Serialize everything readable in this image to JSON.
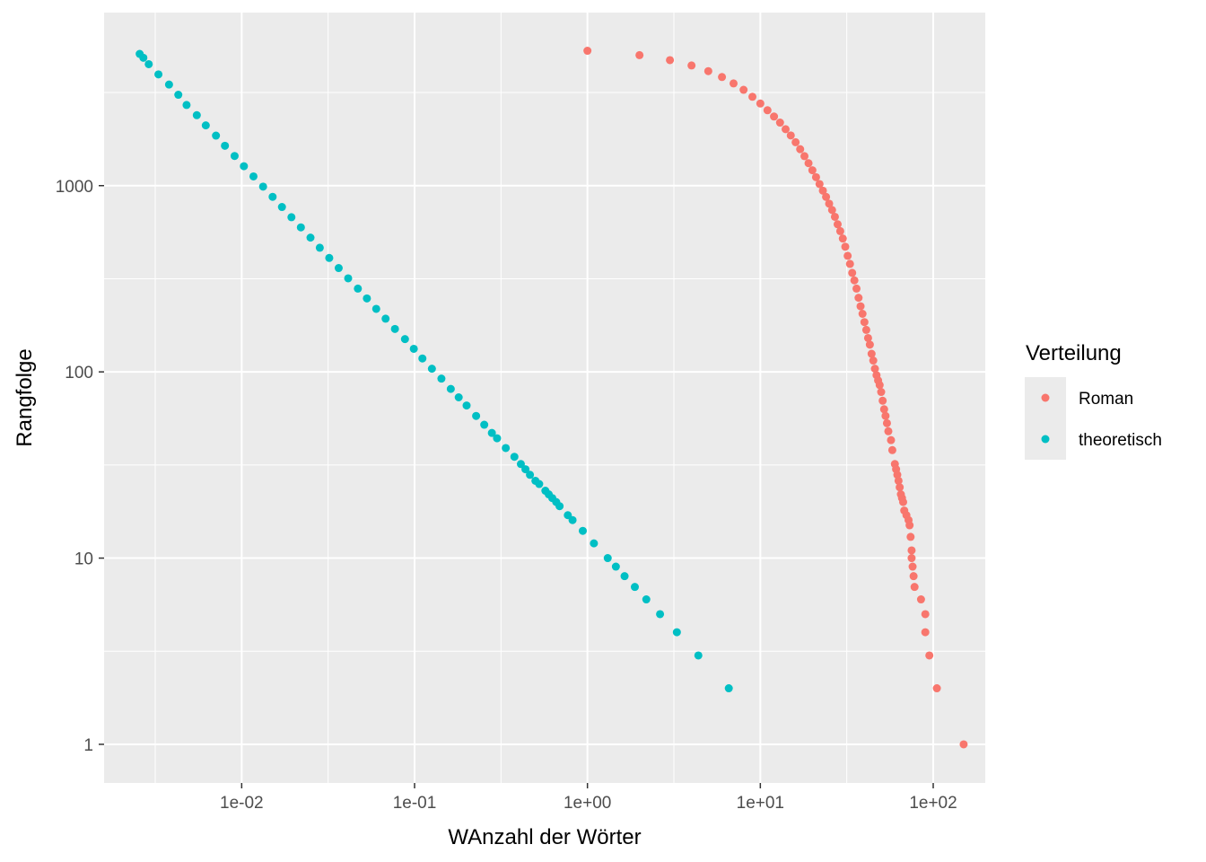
{
  "chart_data": {
    "type": "scatter",
    "xlabel": "WAnzahl der Wörter",
    "ylabel": "Rangfolge",
    "x_scale": "log10",
    "y_scale": "log10",
    "xlim": [
      0.0016,
      200
    ],
    "ylim": [
      0.62,
      8500
    ],
    "grid": true,
    "x_ticks": [
      0.01,
      0.1,
      1,
      10,
      100
    ],
    "x_tick_labels": [
      "1e-02",
      "1e-01",
      "1e+00",
      "1e+01",
      "1e+02"
    ],
    "y_ticks": [
      1,
      10,
      100,
      1000
    ],
    "y_tick_labels": [
      "1",
      "10",
      "100",
      "1000"
    ],
    "legend": {
      "title": "Verteilung",
      "placement": "right"
    },
    "series": [
      {
        "name": "Roman",
        "color": "#F8766D",
        "points": [
          [
            150,
            1
          ],
          [
            105,
            2
          ],
          [
            95,
            3
          ],
          [
            90,
            4
          ],
          [
            90,
            5
          ],
          [
            85,
            6
          ],
          [
            78,
            7
          ],
          [
            77,
            8
          ],
          [
            76,
            9
          ],
          [
            75,
            10
          ],
          [
            75,
            11
          ],
          [
            74,
            13
          ],
          [
            73,
            15
          ],
          [
            72,
            16
          ],
          [
            70,
            17
          ],
          [
            68,
            18
          ],
          [
            67,
            20
          ],
          [
            66,
            21
          ],
          [
            65,
            22
          ],
          [
            64,
            24
          ],
          [
            63,
            26
          ],
          [
            62,
            28
          ],
          [
            61,
            30
          ],
          [
            60,
            32
          ],
          [
            58,
            38
          ],
          [
            57,
            43
          ],
          [
            55,
            48
          ],
          [
            54,
            53
          ],
          [
            53,
            58
          ],
          [
            52,
            63
          ],
          [
            51,
            70
          ],
          [
            50,
            78
          ],
          [
            49,
            85
          ],
          [
            48,
            90
          ],
          [
            47,
            96
          ],
          [
            46,
            104
          ],
          [
            45,
            115
          ],
          [
            44,
            125
          ],
          [
            43,
            140
          ],
          [
            42,
            152
          ],
          [
            41,
            168
          ],
          [
            40,
            185
          ],
          [
            39,
            205
          ],
          [
            38,
            225
          ],
          [
            37,
            250
          ],
          [
            36,
            280
          ],
          [
            35,
            310
          ],
          [
            34,
            340
          ],
          [
            33,
            380
          ],
          [
            32,
            420
          ],
          [
            31,
            470
          ],
          [
            30,
            520
          ],
          [
            29,
            570
          ],
          [
            28,
            620
          ],
          [
            27,
            680
          ],
          [
            26,
            740
          ],
          [
            25,
            800
          ],
          [
            24,
            870
          ],
          [
            23,
            940
          ],
          [
            22,
            1020
          ],
          [
            21,
            1110
          ],
          [
            20,
            1210
          ],
          [
            19,
            1320
          ],
          [
            18,
            1440
          ],
          [
            17,
            1570
          ],
          [
            16,
            1710
          ],
          [
            15,
            1860
          ],
          [
            14,
            2010
          ],
          [
            13,
            2180
          ],
          [
            12,
            2350
          ],
          [
            11,
            2540
          ],
          [
            10,
            2760
          ],
          [
            9,
            3000
          ],
          [
            8,
            3270
          ],
          [
            7,
            3540
          ],
          [
            6,
            3830
          ],
          [
            5,
            4120
          ],
          [
            4,
            4420
          ],
          [
            3,
            4720
          ],
          [
            2,
            5020
          ],
          [
            1,
            5300
          ]
        ]
      },
      {
        "name": "theoretisch",
        "color": "#00BFC4",
        "points": [
          [
            6.57,
            2
          ],
          [
            4.38,
            3
          ],
          [
            3.29,
            4
          ],
          [
            2.63,
            5
          ],
          [
            2.19,
            6
          ],
          [
            1.88,
            7
          ],
          [
            1.64,
            8
          ],
          [
            1.46,
            9
          ],
          [
            1.31,
            10
          ],
          [
            1.09,
            12
          ],
          [
            0.94,
            14
          ],
          [
            0.82,
            16
          ],
          [
            0.77,
            17
          ],
          [
            0.69,
            19
          ],
          [
            0.66,
            20
          ],
          [
            0.626,
            21
          ],
          [
            0.597,
            22
          ],
          [
            0.571,
            23
          ],
          [
            0.526,
            25
          ],
          [
            0.5,
            26
          ],
          [
            0.465,
            28
          ],
          [
            0.438,
            30
          ],
          [
            0.412,
            32
          ],
          [
            0.378,
            35
          ],
          [
            0.337,
            39
          ],
          [
            0.3,
            44
          ],
          [
            0.28,
            47
          ],
          [
            0.253,
            52
          ],
          [
            0.227,
            58
          ],
          [
            0.2,
            66
          ],
          [
            0.18,
            73
          ],
          [
            0.162,
            81
          ],
          [
            0.143,
            92
          ],
          [
            0.126,
            104
          ],
          [
            0.111,
            118
          ],
          [
            0.099,
            133
          ],
          [
            0.088,
            150
          ],
          [
            0.077,
            170
          ],
          [
            0.068,
            193
          ],
          [
            0.06,
            218
          ],
          [
            0.053,
            248
          ],
          [
            0.047,
            280
          ],
          [
            0.0413,
            318
          ],
          [
            0.0364,
            361
          ],
          [
            0.0321,
            409
          ],
          [
            0.0283,
            464
          ],
          [
            0.025,
            526
          ],
          [
            0.022,
            597
          ],
          [
            0.0194,
            677
          ],
          [
            0.0171,
            768
          ],
          [
            0.0151,
            871
          ],
          [
            0.0133,
            988
          ],
          [
            0.0117,
            1121
          ],
          [
            0.0103,
            1272
          ],
          [
            0.0091,
            1443
          ],
          [
            0.008,
            1637
          ],
          [
            0.0071,
            1857
          ],
          [
            0.0062,
            2107
          ],
          [
            0.0055,
            2390
          ],
          [
            0.0048,
            2711
          ],
          [
            0.0043,
            3076
          ],
          [
            0.0038,
            3490
          ],
          [
            0.0033,
            3959
          ],
          [
            0.0029,
            4492
          ],
          [
            0.0027,
            4860
          ],
          [
            0.00257,
            5100
          ]
        ]
      }
    ]
  }
}
